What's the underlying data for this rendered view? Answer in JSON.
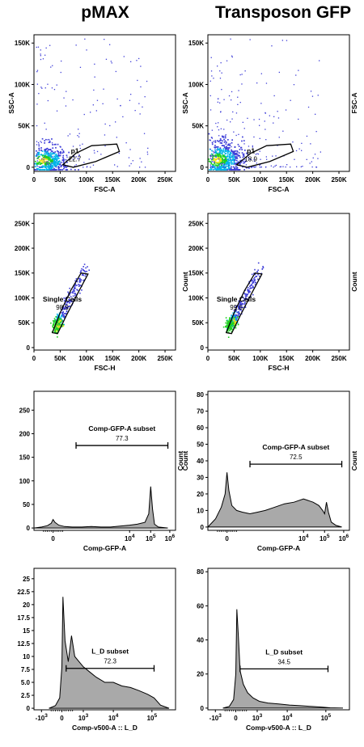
{
  "titles": [
    "pMAX",
    "Transposon GFP"
  ],
  "colors": {
    "frame": "#000000",
    "fill": "#a9a9a9",
    "dot_sparse": "#3f3fd8",
    "dot_mid": "#00b4e8",
    "dot_dense": "#20d020",
    "dot_core": "#f0e020"
  },
  "chart_data": [
    {
      "id": "pmax-ssc-fsc",
      "panel": "pMAX",
      "type": "scatter",
      "xlabel": "FSC-A",
      "ylabel": "SSC-A",
      "right_label": "",
      "xlim": [
        0,
        270000
      ],
      "ylim": [
        -5000,
        160000
      ],
      "xticks": [
        {
          "v": 0,
          "label": "0"
        },
        {
          "v": 50000,
          "label": "50K"
        },
        {
          "v": 100000,
          "label": "100K"
        },
        {
          "v": 150000,
          "label": "150K"
        },
        {
          "v": 200000,
          "label": "200K"
        },
        {
          "v": 250000,
          "label": "250K"
        }
      ],
      "yticks": [
        {
          "v": 0,
          "label": "0"
        },
        {
          "v": 50000,
          "label": "50K"
        },
        {
          "v": 100000,
          "label": "100K"
        },
        {
          "v": 150000,
          "label": "150K"
        }
      ],
      "gate": {
        "name": "p1",
        "value": "22.7",
        "label_at": [
          78000,
          17000
        ],
        "polygon": [
          [
            55000,
            3000
          ],
          [
            80000,
            17000
          ],
          [
            110000,
            26000
          ],
          [
            158000,
            28000
          ],
          [
            163000,
            19000
          ],
          [
            118000,
            7000
          ],
          [
            75000,
            0
          ]
        ]
      },
      "points": {
        "seed": 11,
        "dense": 430,
        "sparse": 170,
        "center": [
          18000,
          8000
        ],
        "spread": [
          26000,
          9000
        ],
        "xmax": 250000,
        "ymax": 155000
      }
    },
    {
      "id": "gfp-ssc-fsc",
      "panel": "Transposon GFP",
      "type": "scatter",
      "xlabel": "FSC-A",
      "ylabel": "SSC-A",
      "right_label": "FSC-A",
      "xlim": [
        0,
        270000
      ],
      "ylim": [
        -5000,
        160000
      ],
      "xticks": [
        {
          "v": 0,
          "label": "0"
        },
        {
          "v": 50000,
          "label": "50K"
        },
        {
          "v": 100000,
          "label": "100K"
        },
        {
          "v": 150000,
          "label": "150K"
        },
        {
          "v": 200000,
          "label": "200K"
        },
        {
          "v": 250000,
          "label": "250K"
        }
      ],
      "yticks": [
        {
          "v": 0,
          "label": "0"
        },
        {
          "v": 50000,
          "label": "50K"
        },
        {
          "v": 100000,
          "label": "100K"
        },
        {
          "v": 150000,
          "label": "150K"
        }
      ],
      "gate": {
        "name": "p1",
        "value": "18.9",
        "label_at": [
          82000,
          17000
        ],
        "polygon": [
          [
            55000,
            3000
          ],
          [
            82000,
            17000
          ],
          [
            112000,
            26000
          ],
          [
            158000,
            28000
          ],
          [
            163000,
            19000
          ],
          [
            118000,
            7000
          ],
          [
            75000,
            0
          ]
        ]
      },
      "points": {
        "seed": 23,
        "dense": 500,
        "sparse": 230,
        "center": [
          18000,
          9000
        ],
        "spread": [
          26000,
          11000
        ],
        "xmax": 250000,
        "ymax": 155000
      }
    },
    {
      "id": "pmax-single-cells",
      "panel": "pMAX",
      "type": "scatter",
      "xlabel": "FSC-H",
      "ylabel": "",
      "right_label": "",
      "xlim": [
        0,
        270000
      ],
      "ylim": [
        -5000,
        270000
      ],
      "xticks": [
        {
          "v": 0,
          "label": "0"
        },
        {
          "v": 50000,
          "label": "50K"
        },
        {
          "v": 100000,
          "label": "100K"
        },
        {
          "v": 150000,
          "label": "150K"
        },
        {
          "v": 200000,
          "label": "200K"
        },
        {
          "v": 250000,
          "label": "250K"
        }
      ],
      "yticks": [
        {
          "v": 0,
          "label": "0"
        },
        {
          "v": 50000,
          "label": "50K"
        },
        {
          "v": 100000,
          "label": "100K"
        },
        {
          "v": 150000,
          "label": "150K"
        },
        {
          "v": 200000,
          "label": "200K"
        },
        {
          "v": 250000,
          "label": "250K"
        }
      ],
      "gate": {
        "name": "Single Cells",
        "value": "98.9",
        "label_at": [
          54000,
          93000
        ],
        "polygon": [
          [
            35000,
            30000
          ],
          [
            50000,
            70000
          ],
          [
            70000,
            115000
          ],
          [
            90000,
            150000
          ],
          [
            103000,
            148000
          ],
          [
            84000,
            110000
          ],
          [
            62000,
            65000
          ],
          [
            45000,
            28000
          ]
        ]
      },
      "points": {
        "seed": 37,
        "diagonal": true,
        "n": 260,
        "slope": 1.0,
        "from": [
          40000,
          40000
        ],
        "to": [
          100000,
          160000
        ],
        "dense_end": [
          48000,
          48000
        ]
      }
    },
    {
      "id": "gfp-single-cells",
      "panel": "Transposon GFP",
      "type": "scatter",
      "xlabel": "FSC-H",
      "ylabel": "Count",
      "right_label": "Count",
      "xlim": [
        0,
        270000
      ],
      "ylim": [
        -5000,
        270000
      ],
      "xticks": [
        {
          "v": 0,
          "label": "0"
        },
        {
          "v": 50000,
          "label": "50K"
        },
        {
          "v": 100000,
          "label": "100K"
        },
        {
          "v": 150000,
          "label": "150K"
        },
        {
          "v": 200000,
          "label": "200K"
        },
        {
          "v": 250000,
          "label": "250K"
        }
      ],
      "yticks": [
        {
          "v": 0,
          "label": "0"
        },
        {
          "v": 50000,
          "label": "50K"
        },
        {
          "v": 100000,
          "label": "100K"
        },
        {
          "v": 150000,
          "label": "150K"
        },
        {
          "v": 200000,
          "label": "200K"
        },
        {
          "v": 250000,
          "label": "250K"
        }
      ],
      "gate": {
        "name": "Single Cells",
        "value": "99.6",
        "label_at": [
          54000,
          93000
        ],
        "polygon": [
          [
            35000,
            30000
          ],
          [
            50000,
            70000
          ],
          [
            70000,
            115000
          ],
          [
            90000,
            150000
          ],
          [
            103000,
            148000
          ],
          [
            84000,
            110000
          ],
          [
            62000,
            65000
          ],
          [
            45000,
            28000
          ]
        ]
      },
      "points": {
        "seed": 41,
        "diagonal": true,
        "n": 300,
        "slope": 1.0,
        "from": [
          40000,
          40000
        ],
        "to": [
          100000,
          160000
        ],
        "dense_end": [
          50000,
          50000
        ]
      }
    },
    {
      "id": "pmax-gfp-hist",
      "panel": "pMAX",
      "type": "area",
      "xlabel": "Comp-GFP-A",
      "ylabel": "",
      "right_label": "Count",
      "xlim": [
        -1.0,
        6.4
      ],
      "ylim": [
        -5,
        290
      ],
      "xticks": [
        {
          "v": 0,
          "label": "0"
        },
        {
          "v": 4,
          "label": "10^4"
        },
        {
          "v": 5.1,
          "label": "10^5"
        },
        {
          "v": 6.1,
          "label": "10^6"
        }
      ],
      "yticks": [
        {
          "v": 0,
          "label": "0"
        },
        {
          "v": 50,
          "label": "50"
        },
        {
          "v": 100,
          "label": "100"
        },
        {
          "v": 150,
          "label": "150"
        },
        {
          "v": 200,
          "label": "200"
        },
        {
          "v": 250,
          "label": "250"
        }
      ],
      "gate_bar": {
        "name": "Comp-GFP-A subset",
        "value": "77.3",
        "from": 1.2,
        "to": 6.0,
        "y": 175
      },
      "x": [
        -1.0,
        -0.6,
        -0.3,
        -0.1,
        0.0,
        0.1,
        0.3,
        0.6,
        1.0,
        1.5,
        2.0,
        2.5,
        3.0,
        3.5,
        4.0,
        4.4,
        4.8,
        5.0,
        5.1,
        5.2,
        5.3,
        5.5,
        6.0
      ],
      "values": [
        0,
        2,
        5,
        10,
        18,
        12,
        6,
        3,
        2,
        2,
        3,
        2,
        2,
        4,
        6,
        8,
        12,
        30,
        88,
        40,
        8,
        2,
        0
      ]
    },
    {
      "id": "gfp-gfp-hist",
      "panel": "Transposon GFP",
      "type": "area",
      "xlabel": "Comp-GFP-A",
      "ylabel": "Count",
      "right_label": "Count",
      "xlim": [
        -1.0,
        6.4
      ],
      "ylim": [
        -2,
        82
      ],
      "xticks": [
        {
          "v": 0,
          "label": "0"
        },
        {
          "v": 4,
          "label": "10^4"
        },
        {
          "v": 5.1,
          "label": "10^5"
        },
        {
          "v": 6.1,
          "label": "10^6"
        }
      ],
      "yticks": [
        {
          "v": 0,
          "label": "0"
        },
        {
          "v": 10,
          "label": "10"
        },
        {
          "v": 20,
          "label": "20"
        },
        {
          "v": 30,
          "label": "30"
        },
        {
          "v": 40,
          "label": "40"
        },
        {
          "v": 50,
          "label": "50"
        },
        {
          "v": 60,
          "label": "60"
        },
        {
          "v": 70,
          "label": "70"
        },
        {
          "v": 80,
          "label": "80"
        }
      ],
      "gate_bar": {
        "name": "Comp-GFP-A subset",
        "value": "72.5",
        "from": 1.2,
        "to": 6.0,
        "y": 38
      },
      "x": [
        -1.0,
        -0.6,
        -0.3,
        -0.1,
        0.0,
        0.1,
        0.25,
        0.5,
        0.8,
        1.2,
        1.6,
        2.0,
        2.5,
        3.0,
        3.5,
        4.0,
        4.5,
        4.8,
        5.0,
        5.1,
        5.2,
        5.3,
        5.45,
        5.7,
        6.0
      ],
      "values": [
        0,
        5,
        12,
        20,
        33,
        22,
        13,
        10,
        9,
        8,
        9,
        10,
        12,
        14,
        15,
        17,
        15,
        13,
        10,
        8,
        15,
        9,
        3,
        1,
        0
      ]
    },
    {
      "id": "pmax-ld-hist",
      "panel": "pMAX",
      "type": "area",
      "xlabel": "Comp-v500-A :: L_D",
      "ylabel": "",
      "right_label": "",
      "xlim": [
        -1.3,
        5.3
      ],
      "ylim": [
        -0.3,
        27
      ],
      "xticks": [
        {
          "v": -0.95,
          "label": "-10^3"
        },
        {
          "v": 0,
          "label": "0"
        },
        {
          "v": 1.0,
          "label": "10^3"
        },
        {
          "v": 2.4,
          "label": "10^4"
        },
        {
          "v": 4.2,
          "label": "10^5"
        }
      ],
      "yticks": [
        {
          "v": 0,
          "label": "0"
        },
        {
          "v": 2.5,
          "label": "2.5"
        },
        {
          "v": 5.0,
          "label": "5.0"
        },
        {
          "v": 7.5,
          "label": "7.5"
        },
        {
          "v": 10,
          "label": "10"
        },
        {
          "v": 12.5,
          "label": "12.5"
        },
        {
          "v": 15,
          "label": "15"
        },
        {
          "v": 17.5,
          "label": "17.5"
        },
        {
          "v": 20,
          "label": "20"
        },
        {
          "v": 22.5,
          "label": "22.5"
        },
        {
          "v": 25,
          "label": "25"
        }
      ],
      "gate_bar": {
        "name": "L_D subset",
        "value": "72.3",
        "from": 0.2,
        "to": 4.3,
        "y": 7.7
      },
      "x": [
        -0.6,
        -0.3,
        -0.1,
        0.0,
        0.05,
        0.15,
        0.3,
        0.45,
        0.6,
        0.8,
        1.0,
        1.3,
        1.6,
        2.0,
        2.4,
        2.8,
        3.2,
        3.6,
        4.0,
        4.3,
        4.6,
        5.0
      ],
      "values": [
        0,
        0.5,
        2,
        8,
        21.5,
        13,
        9,
        14,
        10,
        9,
        8,
        7,
        6,
        5,
        5,
        4.3,
        4,
        3.4,
        2.7,
        2,
        0.6,
        0
      ]
    },
    {
      "id": "gfp-ld-hist",
      "panel": "Transposon GFP",
      "type": "area",
      "xlabel": "Comp-v500-A :: L_D",
      "ylabel": "",
      "right_label": "",
      "xlim": [
        -1.3,
        5.3
      ],
      "ylim": [
        -1,
        82
      ],
      "xticks": [
        {
          "v": -0.95,
          "label": "-10^3"
        },
        {
          "v": 0,
          "label": "0"
        },
        {
          "v": 1.0,
          "label": "10^3"
        },
        {
          "v": 2.4,
          "label": "10^4"
        },
        {
          "v": 4.2,
          "label": "10^5"
        }
      ],
      "yticks": [
        {
          "v": 0,
          "label": "0"
        },
        {
          "v": 20,
          "label": "20"
        },
        {
          "v": 40,
          "label": "40"
        },
        {
          "v": 60,
          "label": "60"
        },
        {
          "v": 80,
          "label": "80"
        }
      ],
      "gate_bar": {
        "name": "L_D subset",
        "value": "34.5",
        "from": 0.2,
        "to": 4.3,
        "y": 23
      },
      "x": [
        -0.6,
        -0.3,
        -0.1,
        0.0,
        0.05,
        0.12,
        0.2,
        0.35,
        0.55,
        0.8,
        1.1,
        1.5,
        2.0,
        2.5,
        3.0,
        3.5,
        4.0,
        4.4,
        5.0
      ],
      "values": [
        0,
        1,
        5,
        20,
        58,
        42,
        22,
        14,
        9,
        6,
        4,
        3,
        2.4,
        1.8,
        1.4,
        1.0,
        0.6,
        0.2,
        0
      ]
    }
  ]
}
